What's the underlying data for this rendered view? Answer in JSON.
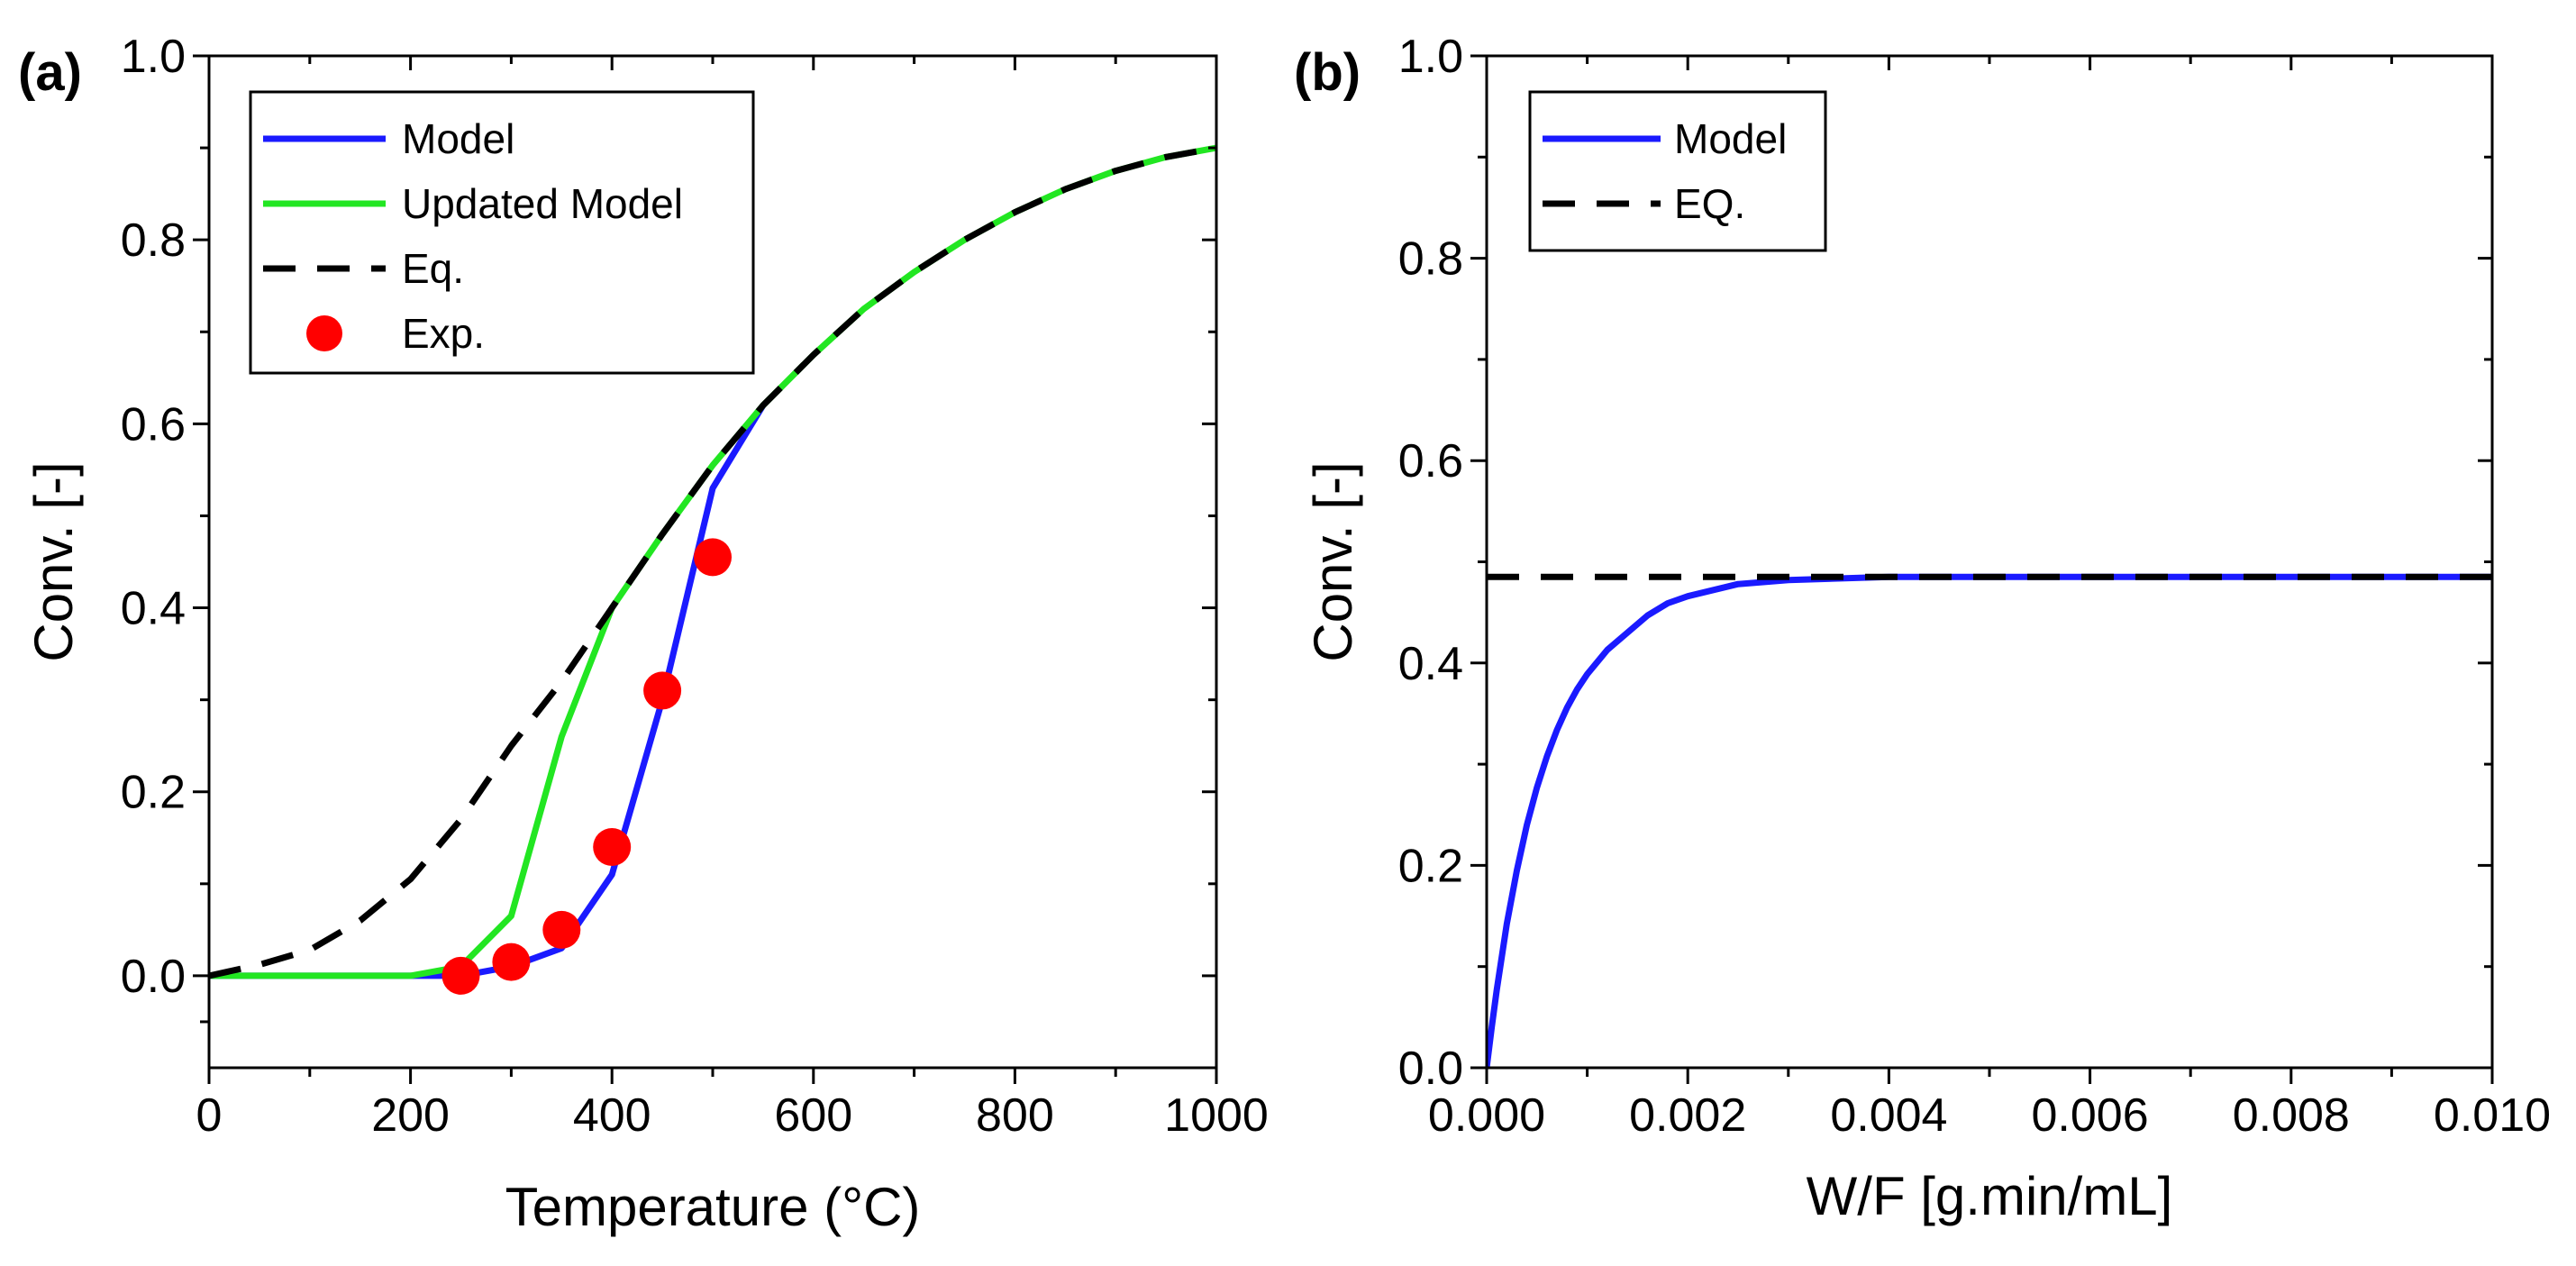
{
  "chart_data": [
    {
      "panel": "(a)",
      "type": "line",
      "xlabel": "Temperature (°C)",
      "ylabel": "Conv. [-]",
      "xlim": [
        0,
        1000
      ],
      "ylim": [
        -0.1,
        1.0
      ],
      "xticks": [
        0,
        200,
        400,
        600,
        800,
        1000
      ],
      "xtick_labels": [
        "0",
        "200",
        "400",
        "600",
        "800",
        "1000"
      ],
      "yticks": [
        0.0,
        0.2,
        0.4,
        0.6,
        0.8,
        1.0
      ],
      "ytick_labels": [
        "0.0",
        "0.2",
        "0.4",
        "0.6",
        "0.8",
        "1.0"
      ],
      "legend": [
        "Model",
        "Updated Model",
        "Eq.",
        "Exp."
      ],
      "legend_position": "top-left",
      "series": [
        {
          "name": "Model",
          "kind": "line",
          "color": "#1a1aff",
          "x": [
            0,
            200,
            250,
            300,
            350,
            400,
            450,
            500,
            550
          ],
          "y": [
            0,
            0,
            0,
            0.01,
            0.03,
            0.11,
            0.3,
            0.53,
            0.62
          ]
        },
        {
          "name": "Updated Model",
          "kind": "line",
          "color": "#22e622",
          "x": [
            0,
            200,
            250,
            300,
            350,
            400,
            450,
            500,
            550,
            600,
            650,
            700,
            750,
            800,
            850,
            900,
            950,
            1000
          ],
          "y": [
            0,
            0,
            0.01,
            0.065,
            0.26,
            0.4,
            0.48,
            0.555,
            0.62,
            0.675,
            0.725,
            0.765,
            0.8,
            0.83,
            0.855,
            0.875,
            0.89,
            0.9
          ]
        },
        {
          "name": "Eq.",
          "kind": "dashed",
          "color": "#000000",
          "x": [
            0,
            50,
            100,
            150,
            200,
            250,
            300,
            350,
            400,
            450,
            500,
            550,
            600,
            650,
            700,
            750,
            800,
            850,
            900,
            950,
            1000
          ],
          "y": [
            0,
            0.012,
            0.028,
            0.06,
            0.105,
            0.17,
            0.25,
            0.32,
            0.4,
            0.48,
            0.555,
            0.62,
            0.675,
            0.725,
            0.765,
            0.8,
            0.83,
            0.855,
            0.875,
            0.89,
            0.9
          ]
        },
        {
          "name": "Exp.",
          "kind": "marker",
          "color": "#ff0000",
          "x": [
            250,
            300,
            350,
            400,
            450,
            500
          ],
          "y": [
            0.0,
            0.015,
            0.05,
            0.14,
            0.31,
            0.455
          ]
        }
      ]
    },
    {
      "panel": "(b)",
      "type": "line",
      "xlabel": "W/F [g.min/mL]",
      "ylabel": "Conv. [-]",
      "xlim": [
        0,
        0.01
      ],
      "ylim": [
        0.0,
        1.0
      ],
      "xticks": [
        0,
        0.002,
        0.004,
        0.006,
        0.008,
        0.01
      ],
      "xtick_labels": [
        "0.000",
        "0.002",
        "0.004",
        "0.006",
        "0.008",
        "0.010"
      ],
      "yticks": [
        0.0,
        0.2,
        0.4,
        0.6,
        0.8,
        1.0
      ],
      "ytick_labels": [
        "0.0",
        "0.2",
        "0.4",
        "0.6",
        "0.8",
        "1.0"
      ],
      "legend": [
        "Model",
        "EQ."
      ],
      "legend_position": "top-left",
      "series": [
        {
          "name": "Model",
          "kind": "line",
          "color": "#1a1aff",
          "x": [
            0,
            5e-05,
            0.0001,
            0.0002,
            0.0003,
            0.0004,
            0.0005,
            0.0006,
            0.0007,
            0.0008,
            0.0009,
            0.001,
            0.0012,
            0.0014,
            0.0016,
            0.0018,
            0.002,
            0.0025,
            0.003,
            0.004,
            0.006,
            0.008,
            0.01
          ],
          "y": [
            0,
            0.04,
            0.077,
            0.142,
            0.195,
            0.24,
            0.277,
            0.308,
            0.334,
            0.356,
            0.374,
            0.389,
            0.413,
            0.43,
            0.447,
            0.459,
            0.466,
            0.478,
            0.482,
            0.485,
            0.485,
            0.485,
            0.485
          ]
        },
        {
          "name": "EQ.",
          "kind": "dashed",
          "color": "#000000",
          "x": [
            0,
            0.01
          ],
          "y": [
            0.485,
            0.485
          ]
        }
      ]
    }
  ]
}
